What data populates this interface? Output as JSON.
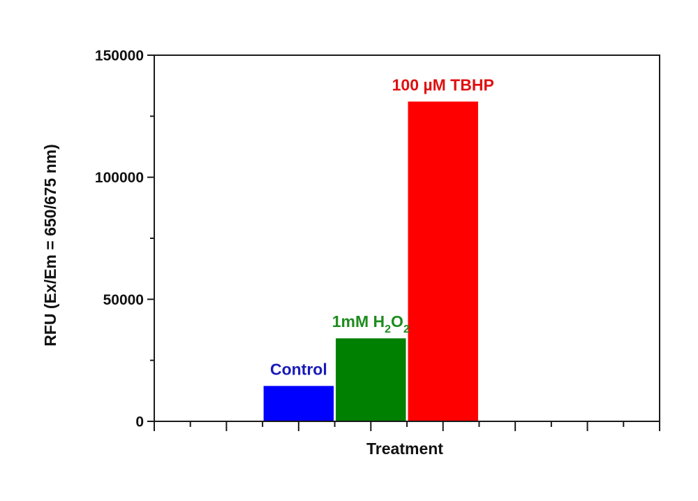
{
  "chart_data": {
    "type": "bar",
    "title": "",
    "xlabel": "Treatment",
    "ylabel": "RFU (Ex/Em = 650/675 nm)",
    "ylim": [
      0,
      150000
    ],
    "yticks": [
      0,
      50000,
      100000,
      150000
    ],
    "ytick_labels": [
      "0",
      "50000",
      "100000",
      "150000"
    ],
    "yminor_ticks": [
      25000,
      75000,
      125000
    ],
    "grid": false,
    "legend": null,
    "categories": [
      "Control",
      "1mM H2O2",
      "100 µM TBHP"
    ],
    "values": [
      14500,
      34000,
      131000
    ],
    "colors": [
      "#0000ff",
      "#008000",
      "#ff0000"
    ],
    "label_colors": [
      "#1a1ab8",
      "#1e8c1e",
      "#e01010"
    ],
    "bar_labels": [
      {
        "main": "Control",
        "parts": [
          {
            "t": "Control",
            "sub": false
          }
        ]
      },
      {
        "main": "1mM H2O2",
        "parts": [
          {
            "t": "1mM H",
            "sub": false
          },
          {
            "t": "2",
            "sub": true
          },
          {
            "t": "O",
            "sub": false
          },
          {
            "t": "2",
            "sub": true
          }
        ]
      },
      {
        "main": "100 µM TBHP",
        "parts": [
          {
            "t": "100 µM TBHP",
            "sub": false
          }
        ]
      }
    ]
  }
}
